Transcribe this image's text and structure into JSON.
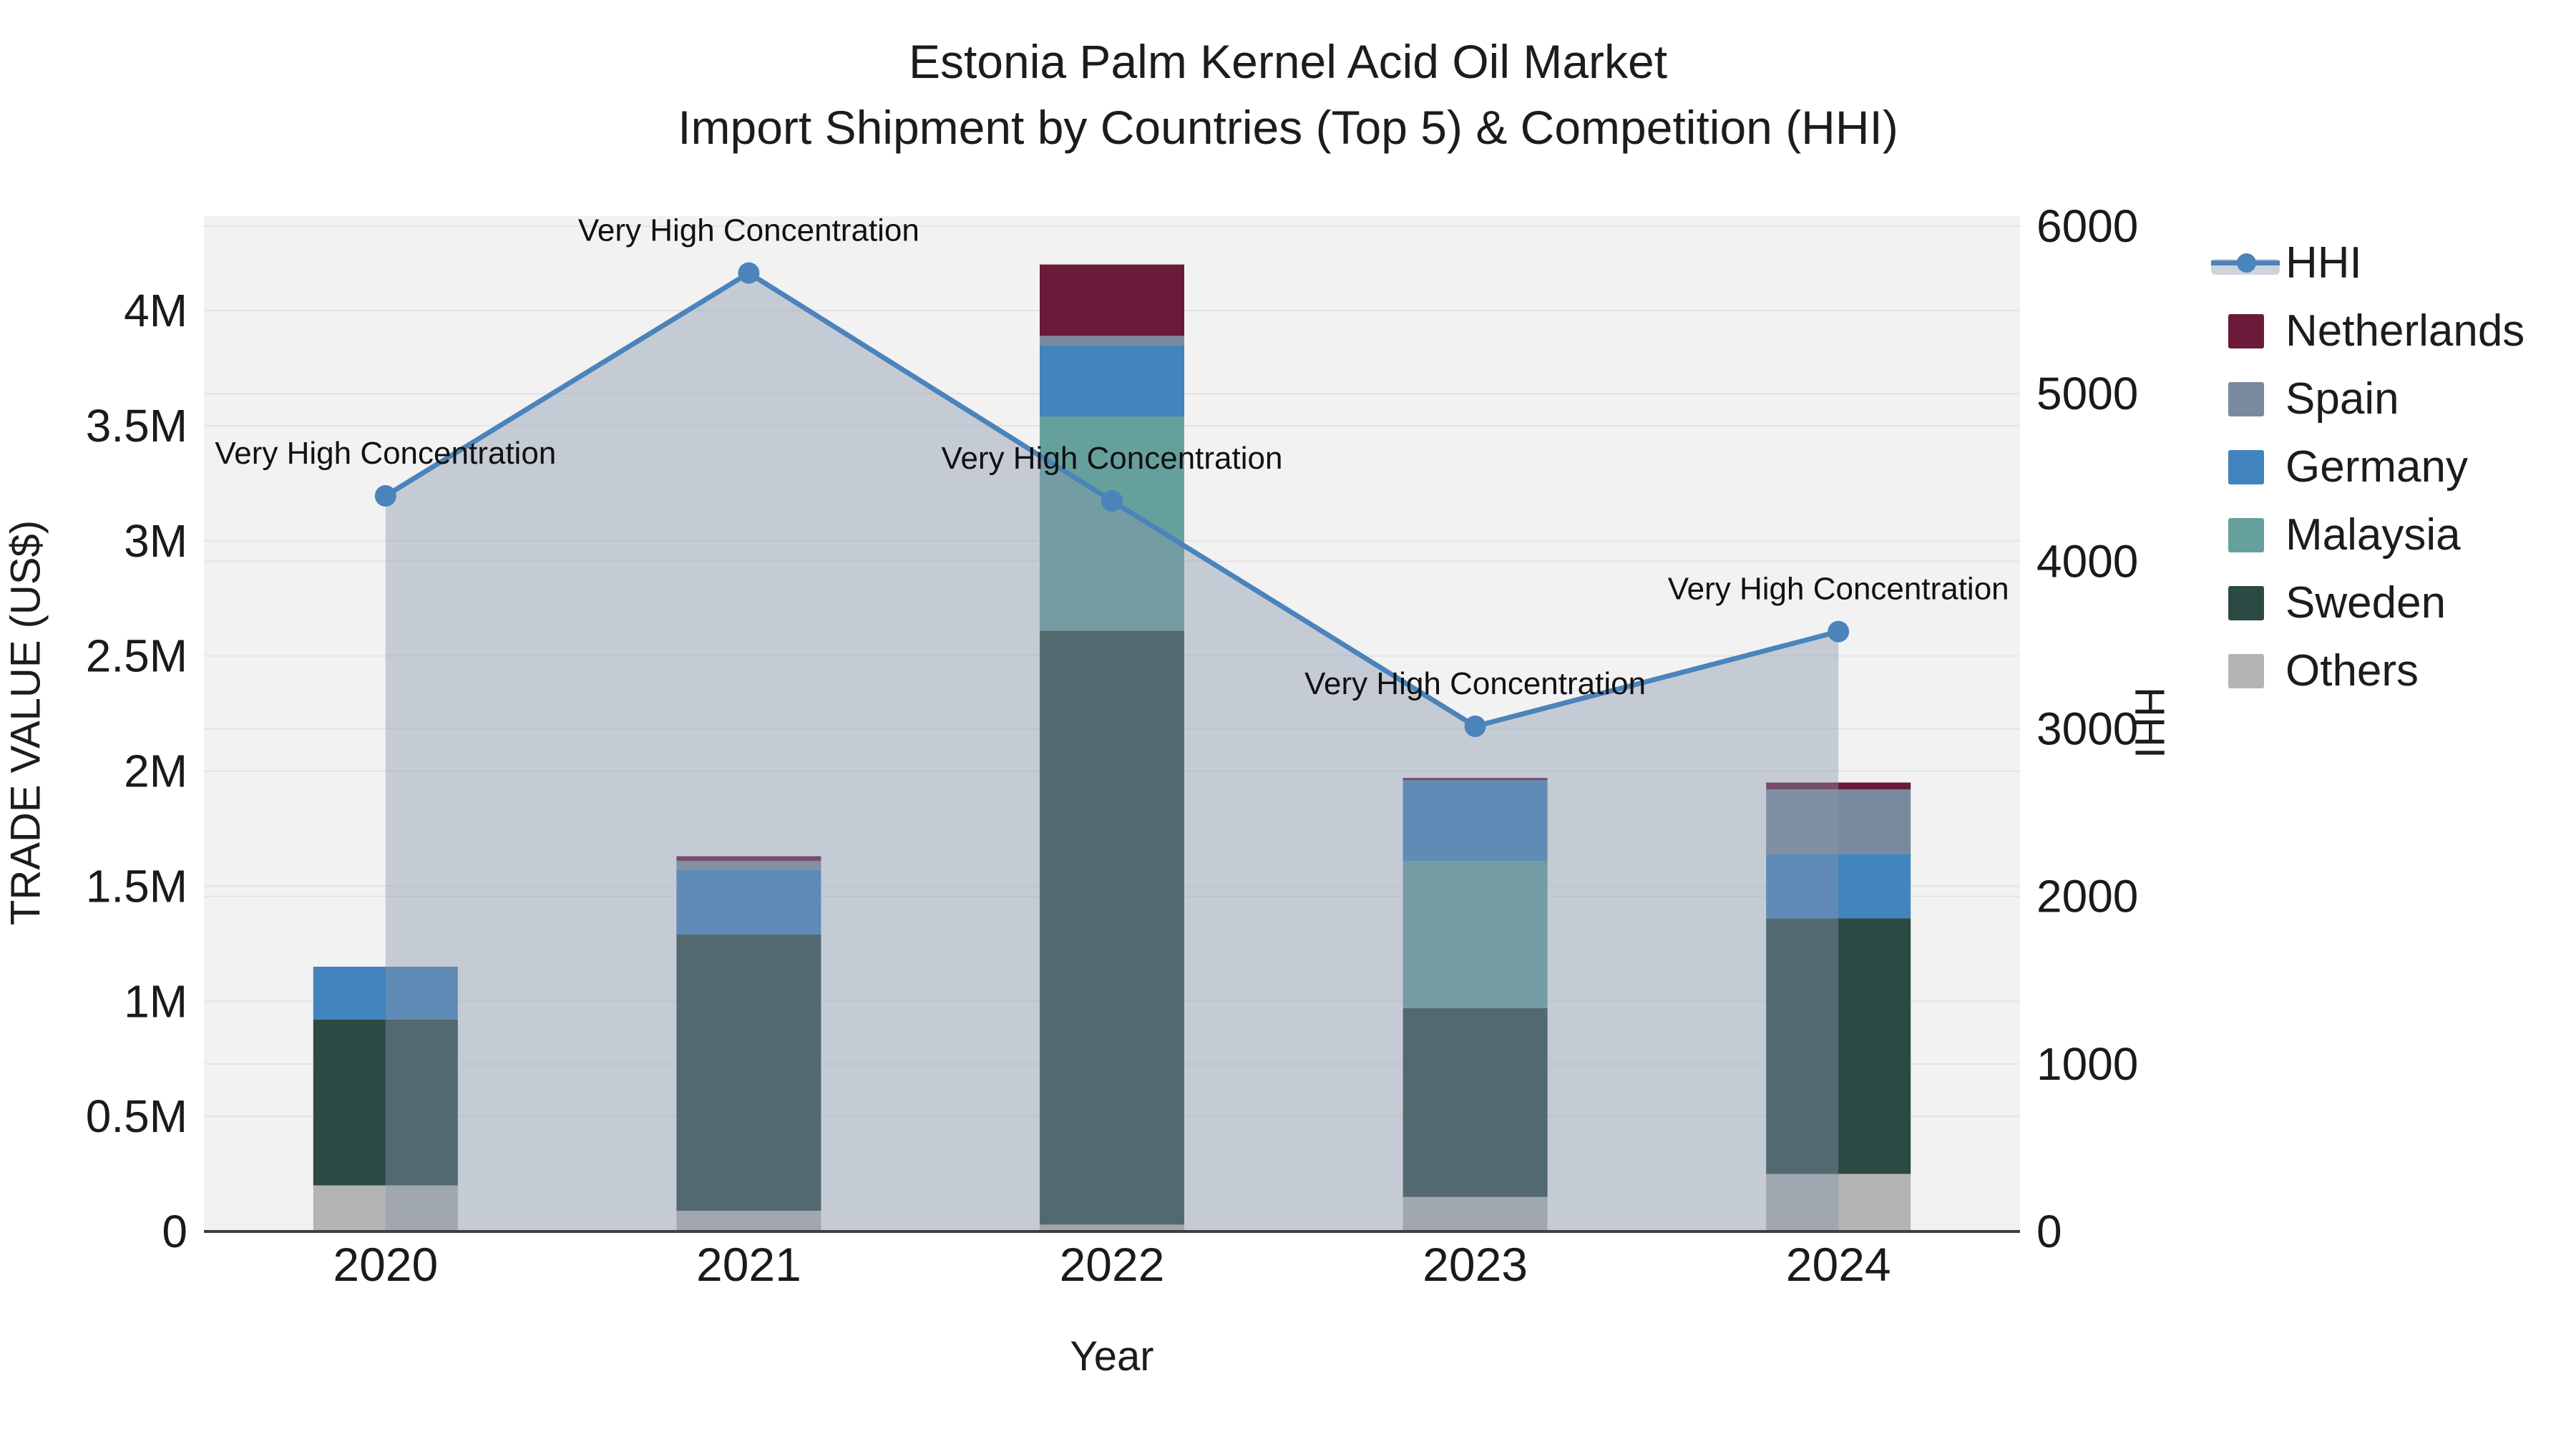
{
  "chart_data": {
    "type": "combo: stacked-bar + line (secondary axis)",
    "title": "Estonia Palm Kernel Acid Oil Market",
    "subtitle": "Import Shipment by Countries (Top 5) & Competition (HHI)",
    "categories": [
      "2020",
      "2021",
      "2022",
      "2023",
      "2024"
    ],
    "value_unit": "US$ millions",
    "series": [
      {
        "name": "Netherlands",
        "color": "#6a1b39",
        "values": [
          0,
          0.02,
          0.31,
          0.01,
          0.03
        ]
      },
      {
        "name": "Spain",
        "color": "#7a8a9e",
        "values": [
          0,
          0.04,
          0.04,
          0,
          0.28
        ]
      },
      {
        "name": "Germany",
        "color": "#4284bd",
        "values": [
          0.23,
          0.28,
          0.31,
          0.35,
          0.28
        ]
      },
      {
        "name": "Malaysia",
        "color": "#66a09d",
        "values": [
          0,
          0,
          0.93,
          0.64,
          0
        ]
      },
      {
        "name": "Sweden",
        "color": "#2c4a44",
        "values": [
          0.72,
          1.2,
          2.58,
          0.82,
          1.11
        ]
      },
      {
        "name": "Others",
        "color": "#b4b4b4",
        "values": [
          0.2,
          0.09,
          0.03,
          0.15,
          0.25
        ]
      }
    ],
    "bar_totals_musd": [
      1.15,
      1.63,
      4.2,
      1.97,
      1.95
    ],
    "hhi": {
      "name": "HHI",
      "color": "#4a84ba",
      "area_color": "rgba(136,149,171,0.42)",
      "values": [
        4390,
        5720,
        4360,
        3015,
        3580
      ],
      "annotations": [
        "Very High Concentration",
        "Very High Concentration",
        "Very High Concentration",
        "Very High Concentration",
        "Very High Concentration"
      ]
    },
    "axes": {
      "x": {
        "label": "Year"
      },
      "left": {
        "label": "TRADE VALUE (US$)",
        "tick_labels": [
          "0",
          "0.5M",
          "1M",
          "1.5M",
          "2M",
          "2.5M",
          "3M",
          "3.5M",
          "4M"
        ],
        "tick_values_musd": [
          0,
          0.5,
          1,
          1.5,
          2,
          2.5,
          3,
          3.5,
          4
        ],
        "range_musd": [
          0,
          4.41
        ]
      },
      "right": {
        "label": "HHI",
        "tick_labels": [
          "0",
          "1000",
          "2000",
          "3000",
          "4000",
          "5000",
          "6000"
        ],
        "tick_values": [
          0,
          1000,
          2000,
          3000,
          4000,
          5000,
          6000
        ],
        "range": [
          0,
          6060
        ]
      },
      "grid": true,
      "plot_background": "#f2f2f2",
      "gridline_color": "#e4e4e4",
      "baseline_color": "#3f3f3f"
    },
    "legend_position": "right"
  }
}
